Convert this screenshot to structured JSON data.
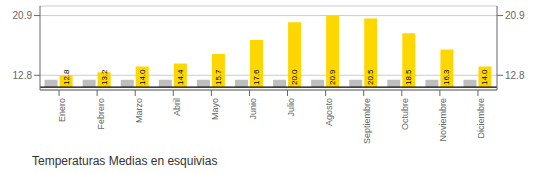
{
  "chart_data": {
    "type": "bar",
    "title": "Temperaturas Medias en esquivias",
    "categories": [
      "Enero",
      "Febrero",
      "Marzo",
      "Abril",
      "Mayo",
      "Junio",
      "Julio",
      "Agosto",
      "Septiembre",
      "Octubre",
      "Noviembre",
      "Diciembre"
    ],
    "series": [
      {
        "color": "#BEBEBE",
        "values": [
          12.2,
          12.2,
          12.2,
          12.2,
          12.2,
          12.2,
          12.2,
          12.2,
          12.2,
          12.2,
          12.2,
          12.2
        ]
      },
      {
        "color": "#FFD700",
        "values": [
          12.8,
          13.2,
          14.0,
          14.4,
          15.7,
          17.6,
          20.0,
          20.9,
          20.5,
          18.5,
          16.3,
          14.0
        ],
        "value_labels": [
          "12.8",
          "13.2",
          "14.0",
          "14.4",
          "15.7",
          "17.6",
          "20.0",
          "20.9",
          "20.5",
          "18.5",
          "16.3",
          "14.0"
        ],
        "data_labels": true
      }
    ],
    "baseline": 11.2,
    "ylim": [
      10.8,
      22.2
    ],
    "yticks": [
      12.8,
      20.9
    ],
    "y2lim": [
      10.8,
      22.2
    ],
    "y2ticks": [
      12.8,
      20.9
    ],
    "grid": true
  }
}
